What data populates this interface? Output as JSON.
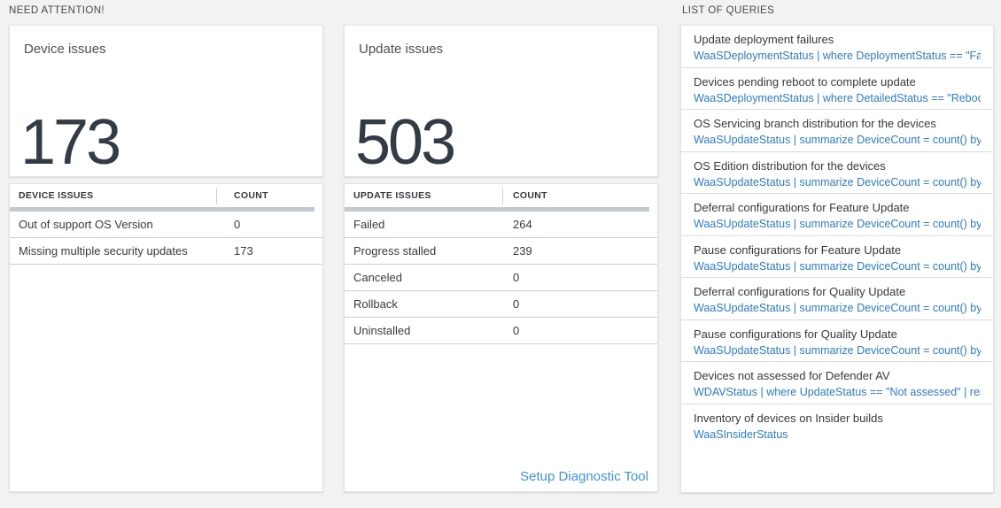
{
  "colors": {
    "page_background": "#f2f2f2",
    "big_number": "#333b45",
    "query_link_blue": "#2e7bbf",
    "footer_link_blue": "#4193d5",
    "grid_scrollbar": "#c3c9cf"
  },
  "need_attention": {
    "section_title": "NEED ATTENTION!",
    "cards": [
      {
        "title": "Device issues",
        "value": "173",
        "table": {
          "headers": [
            "DEVICE ISSUES",
            "COUNT"
          ],
          "rows": [
            [
              "Out of support OS Version",
              "0"
            ],
            [
              "Missing multiple security updates",
              "173"
            ]
          ]
        }
      },
      {
        "title": "Update issues",
        "value": "503",
        "table": {
          "headers": [
            "UPDATE ISSUES",
            "COUNT"
          ],
          "rows": [
            [
              "Failed",
              "264"
            ],
            [
              "Progress stalled",
              "239"
            ],
            [
              "Canceled",
              "0"
            ],
            [
              "Rollback",
              "0"
            ],
            [
              "Uninstalled",
              "0"
            ]
          ]
        },
        "footer_link": "Setup Diagnostic Tool"
      }
    ]
  },
  "queries": {
    "section_title": "LIST OF QUERIES",
    "items": [
      {
        "title": "Update deployment failures",
        "query": "WaaSDeploymentStatus | where DeploymentStatus == \"Failed\" |..."
      },
      {
        "title": "Devices pending reboot to complete update",
        "query": "WaaSDeploymentStatus | where DetailedStatus == \"Reboot pend..."
      },
      {
        "title": "OS Servicing branch distribution for the devices",
        "query": "WaaSUpdateStatus | summarize DeviceCount = count() by OSSer..."
      },
      {
        "title": "OS Edition distribution for the devices",
        "query": "WaaSUpdateStatus | summarize DeviceCount = count() by OSEdit..."
      },
      {
        "title": "Deferral configurations for Feature Update",
        "query": "WaaSUpdateStatus | summarize DeviceCount = count() by Featur..."
      },
      {
        "title": "Pause configurations for Feature Update",
        "query": "WaaSUpdateStatus | summarize DeviceCount = count() by Featur..."
      },
      {
        "title": "Deferral configurations for Quality Update",
        "query": "WaaSUpdateStatus | summarize DeviceCount = count() by Qualit..."
      },
      {
        "title": "Pause configurations for Quality Update",
        "query": "WaaSUpdateStatus | summarize DeviceCount = count() by Qualit..."
      },
      {
        "title": "Devices not assessed for Defender AV",
        "query": "WDAVStatus | where UpdateStatus == \"Not assessed\" | render ta..."
      },
      {
        "title": "Inventory of devices on Insider builds",
        "query": "WaaSInsiderStatus"
      }
    ]
  }
}
